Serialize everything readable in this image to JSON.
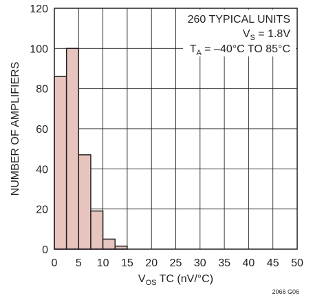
{
  "chart_data": {
    "type": "bar",
    "subtype": "histogram",
    "bin_width": 2.5,
    "bins": [
      {
        "x_start": 0,
        "x_end": 2.5,
        "value": 86
      },
      {
        "x_start": 2.5,
        "x_end": 5,
        "value": 100
      },
      {
        "x_start": 5,
        "x_end": 7.5,
        "value": 47
      },
      {
        "x_start": 7.5,
        "x_end": 10,
        "value": 19
      },
      {
        "x_start": 10,
        "x_end": 12.5,
        "value": 5
      },
      {
        "x_start": 12.5,
        "x_end": 15,
        "value": 1.5
      }
    ],
    "xlim": [
      0,
      50
    ],
    "ylim": [
      0,
      120
    ],
    "x_ticks": [
      0,
      5,
      10,
      15,
      20,
      25,
      30,
      35,
      40,
      45,
      50
    ],
    "y_ticks": [
      0,
      20,
      40,
      60,
      80,
      100,
      120
    ],
    "xlabel": {
      "main": "V",
      "subscript": "OS",
      "rest": " TC (nV/°C)"
    },
    "ylabel": "NUMBER OF AMPLIFIERS",
    "grid": true,
    "annotations": {
      "line1": "260 TYPICAL UNITS",
      "line2": {
        "main": "V",
        "subscript": "S",
        "rest": " = 1.8V"
      },
      "line3": {
        "main": "T",
        "subscript": "A",
        "rest": " = –40°C TO 85°C"
      }
    },
    "figure_id": "2066 G06",
    "colors": {
      "bar_fill": "#e8c4bf",
      "bar_stroke": "#231f20",
      "grid": "#231f20",
      "text": "#231f20"
    }
  }
}
